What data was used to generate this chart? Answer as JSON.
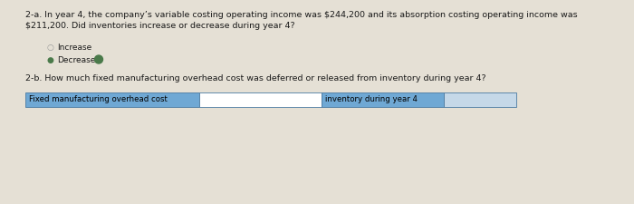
{
  "background_color": "#e5e0d5",
  "title_2a_line1": "2-a. In year 4, the company’s variable costing operating income was $244,200 and its absorption costing operating income was",
  "title_2a_line2": "$211,200. Did inventories increase or decrease during year 4?",
  "option_increase": "Increase",
  "option_decrease": "Decrease",
  "title_2b": "2-b. How much fixed manufacturing overhead cost was deferred or released from inventory during year 4?",
  "col1_label": "Fixed manufacturing overhead cost",
  "col2_label": "inventory during year 4",
  "col1_bg": "#6fa8d4",
  "col2_bg": "#6fa8d4",
  "col1_empty_bg": "#ffffff",
  "col2_empty_bg": "#c5d8e8",
  "table_border": "#4a7aa0",
  "text_color_dark": "#1a1a1a",
  "radio_selected_color": "#4a7a4a",
  "radio_unselected_color": "#999999",
  "check_color": "#3a6a3a",
  "title_fontsize": 6.8,
  "body_fontsize": 6.5,
  "table_fontsize": 6.2
}
